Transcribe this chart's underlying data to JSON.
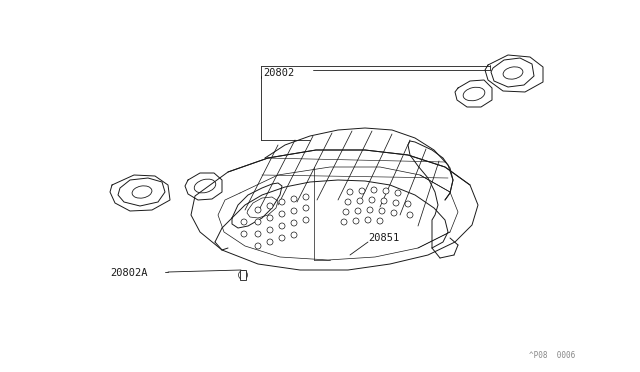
{
  "bg_color": "#ffffff",
  "line_color": "#1a1a1a",
  "label_color": "#1a1a1a",
  "watermark": "^P08  0006",
  "figsize": [
    6.4,
    3.72
  ],
  "dpi": 100,
  "label_20802": [
    263,
    68
  ],
  "label_20851": [
    368,
    232
  ],
  "label_20802A": [
    110,
    268
  ],
  "line_lw": 0.7,
  "font_size": 7.5
}
